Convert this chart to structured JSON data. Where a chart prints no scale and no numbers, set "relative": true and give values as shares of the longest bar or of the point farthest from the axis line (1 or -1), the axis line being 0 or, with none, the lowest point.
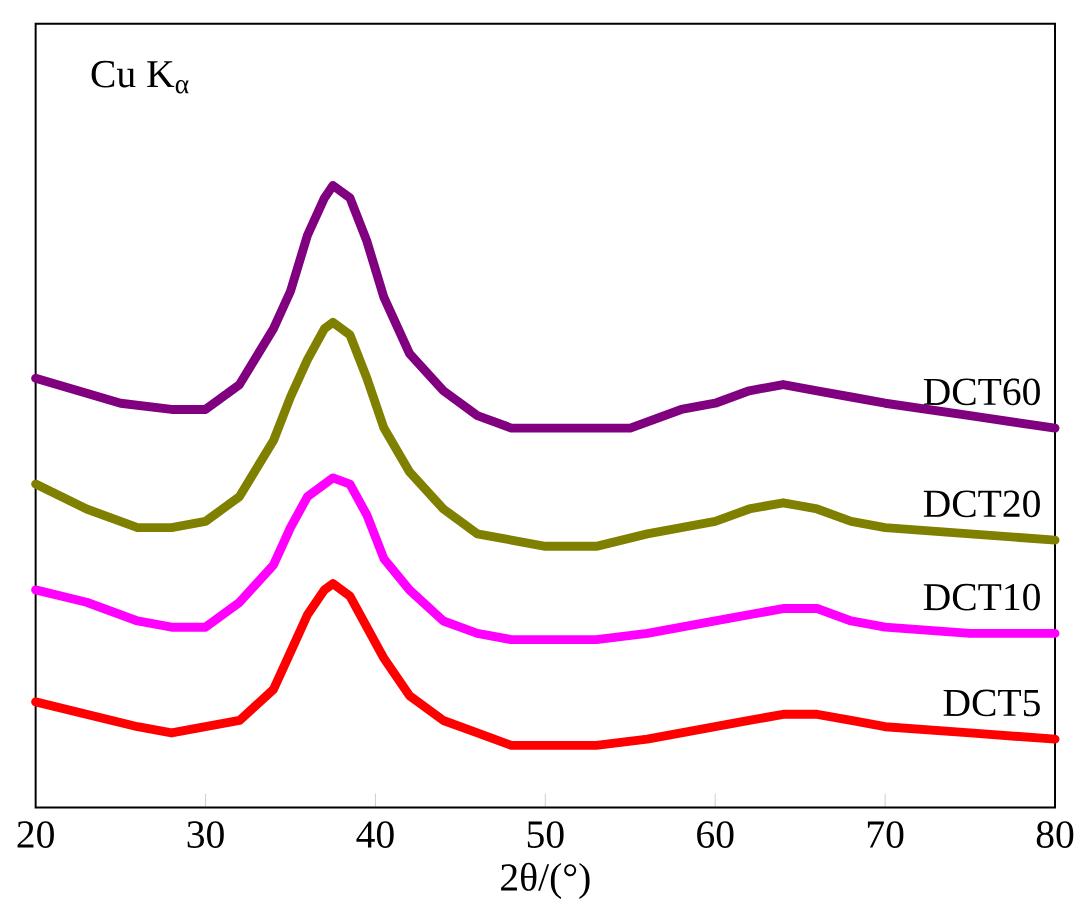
{
  "chart_data": {
    "type": "line",
    "xlabel": "2θ/(°)",
    "annotations": [
      "Cu K$_{α}$"
    ],
    "relative": true,
    "xlim": [
      20,
      80
    ],
    "xticks": [
      20,
      30,
      40,
      50,
      60,
      70,
      80
    ],
    "x": [
      20,
      23,
      26,
      28,
      30,
      32,
      34,
      35,
      36,
      37,
      37.5,
      38.5,
      39.5,
      40.5,
      42,
      44,
      46,
      48,
      50,
      53,
      56,
      58,
      60,
      62,
      64,
      66,
      68,
      70,
      75,
      80
    ],
    "series": [
      {
        "name": "DCT60",
        "color": "#800080",
        "x": [
          20,
          25,
          28,
          30,
          32,
          34,
          35,
          36,
          37,
          37.5,
          38.5,
          39.5,
          40.5,
          42,
          44,
          46,
          48,
          50,
          52,
          55,
          58,
          60,
          62,
          64,
          66,
          68,
          70,
          75,
          80
        ],
        "values": [
          0.69,
          0.65,
          0.64,
          0.64,
          0.68,
          0.77,
          0.83,
          0.92,
          0.98,
          1.0,
          0.98,
          0.91,
          0.82,
          0.73,
          0.67,
          0.63,
          0.61,
          0.61,
          0.61,
          0.61,
          0.64,
          0.65,
          0.67,
          0.68,
          0.67,
          0.66,
          0.65,
          0.63,
          0.61
        ]
      },
      {
        "name": "DCT20",
        "color": "#808000",
        "values": [
          0.52,
          0.48,
          0.45,
          0.45,
          0.46,
          0.5,
          0.59,
          0.66,
          0.72,
          0.77,
          0.78,
          0.76,
          0.69,
          0.61,
          0.54,
          0.48,
          0.44,
          0.43,
          0.42,
          0.42,
          0.44,
          0.45,
          0.46,
          0.48,
          0.49,
          0.48,
          0.46,
          0.45,
          0.44,
          0.43
        ]
      },
      {
        "name": "DCT10",
        "color": "#ff00ff",
        "values": [
          0.35,
          0.33,
          0.3,
          0.29,
          0.29,
          0.33,
          0.39,
          0.45,
          0.5,
          0.52,
          0.53,
          0.52,
          0.47,
          0.4,
          0.35,
          0.3,
          0.28,
          0.27,
          0.27,
          0.27,
          0.28,
          0.29,
          0.3,
          0.31,
          0.32,
          0.32,
          0.3,
          0.29,
          0.28,
          0.28
        ]
      },
      {
        "name": "DCT5",
        "color": "#ff0000",
        "values": [
          0.17,
          0.15,
          0.13,
          0.12,
          0.13,
          0.14,
          0.19,
          0.25,
          0.31,
          0.35,
          0.36,
          0.34,
          0.29,
          0.24,
          0.18,
          0.14,
          0.12,
          0.1,
          0.1,
          0.1,
          0.11,
          0.12,
          0.13,
          0.14,
          0.15,
          0.15,
          0.14,
          0.13,
          0.12,
          0.11
        ]
      }
    ]
  }
}
